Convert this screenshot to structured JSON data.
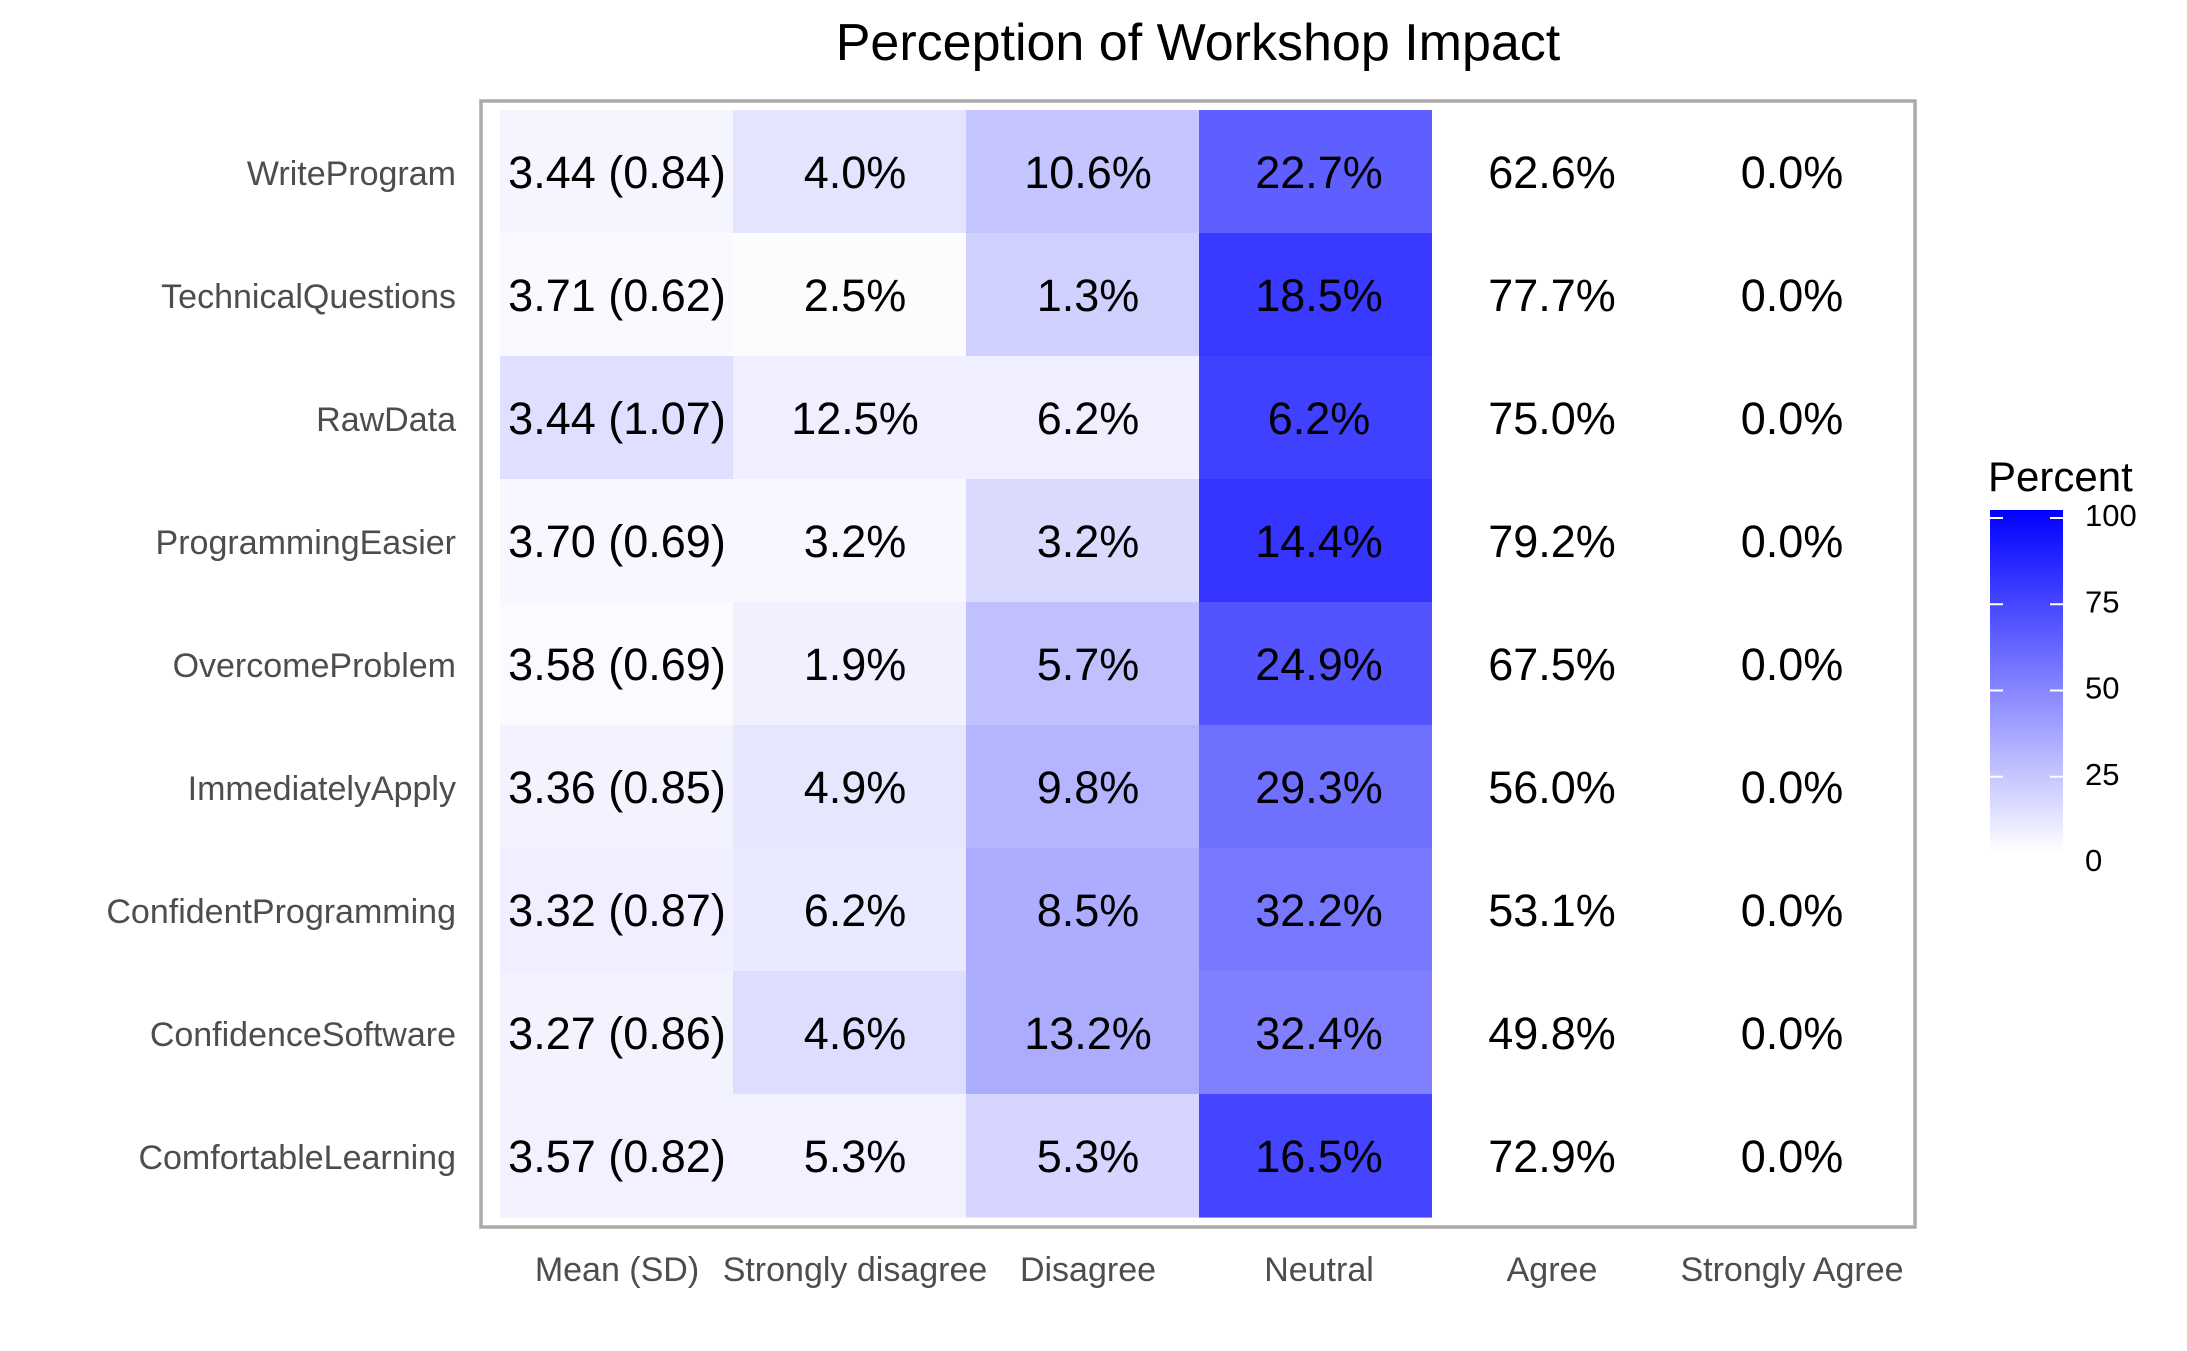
{
  "chart_data": {
    "type": "heatmap",
    "title": "Perception of Workshop Impact",
    "xlabel": "",
    "ylabel": "",
    "columns": [
      "Mean (SD)",
      "Strongly disagree",
      "Disagree",
      "Neutral",
      "Agree",
      "Strongly Agree"
    ],
    "rows": [
      {
        "label": "WriteProgram",
        "mean_sd": "3.44 (0.84)",
        "values": [
          4.0,
          10.6,
          22.7,
          62.6,
          0.0
        ]
      },
      {
        "label": "TechnicalQuestions",
        "mean_sd": "3.71 (0.62)",
        "values": [
          2.5,
          1.3,
          18.5,
          77.7,
          0.0
        ]
      },
      {
        "label": "RawData",
        "mean_sd": "3.44 (1.07)",
        "values": [
          12.5,
          6.2,
          6.2,
          75.0,
          0.0
        ]
      },
      {
        "label": "ProgrammingEasier",
        "mean_sd": "3.70 (0.69)",
        "values": [
          3.2,
          3.2,
          14.4,
          79.2,
          0.0
        ]
      },
      {
        "label": "OvercomeProblem",
        "mean_sd": "3.58 (0.69)",
        "values": [
          1.9,
          5.7,
          24.9,
          67.5,
          0.0
        ]
      },
      {
        "label": "ImmediatelyApply",
        "mean_sd": "3.36 (0.85)",
        "values": [
          4.9,
          9.8,
          29.3,
          56.0,
          0.0
        ]
      },
      {
        "label": "ConfidentProgramming",
        "mean_sd": "3.32 (0.87)",
        "values": [
          6.2,
          8.5,
          32.2,
          53.1,
          0.0
        ]
      },
      {
        "label": "ConfidenceSoftware",
        "mean_sd": "3.27 (0.86)",
        "values": [
          4.6,
          13.2,
          32.4,
          49.8,
          0.0
        ]
      },
      {
        "label": "ComfortableLearning",
        "mean_sd": "3.57 (0.82)",
        "values": [
          5.3,
          5.3,
          16.5,
          72.9,
          0.0
        ]
      }
    ],
    "value_suffix": "%",
    "legend": {
      "title": "Percent",
      "position": "right",
      "ticks": [
        0,
        25,
        50,
        75,
        100
      ],
      "low_color": "#ffffff",
      "high_color": "#0000ff"
    },
    "grid": false
  }
}
